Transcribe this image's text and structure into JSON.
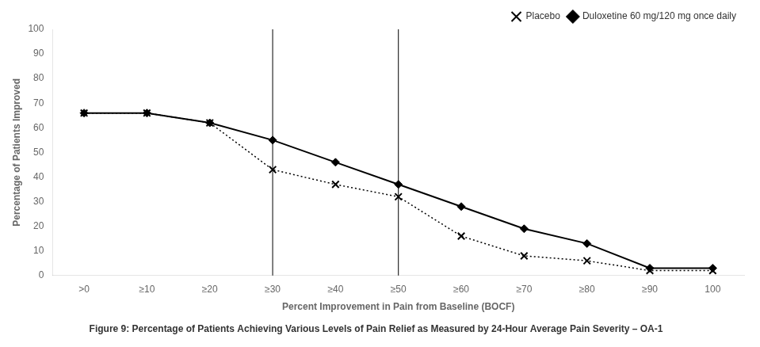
{
  "chart_data": {
    "type": "line",
    "title": "Figure 9: Percentage of Patients Achieving Various Levels of Pain Relief as Measured by 24-Hour Average Pain Severity – OA-1",
    "x_label": "Percent Improvement in Pain from Baseline (BOCF)",
    "y_label": "Percentage of Patients Improved",
    "categories": [
      ">0",
      "≥10",
      "≥20",
      "≥30",
      "≥40",
      "≥50",
      "≥60",
      "≥70",
      "≥80",
      "≥90",
      "100"
    ],
    "series": [
      {
        "name": "Placebo",
        "color": "#000000",
        "marker": "x",
        "line_style": "dotted",
        "values": [
          66,
          66,
          62,
          43,
          37,
          32,
          16,
          8,
          6,
          2,
          2
        ]
      },
      {
        "name": "Duloxetine 60 mg/120 mg once daily",
        "color": "#000000",
        "marker": "diamond",
        "line_style": "solid",
        "values": [
          66,
          66,
          62,
          55,
          46,
          37,
          28,
          19,
          13,
          3,
          3
        ]
      }
    ],
    "vlines": [
      "≥30",
      "≥50"
    ],
    "ylim": [
      0,
      100
    ],
    "yticks": [
      0,
      10,
      20,
      30,
      40,
      50,
      60,
      70,
      80,
      90,
      100
    ],
    "grid": false,
    "legend": "upper right"
  }
}
